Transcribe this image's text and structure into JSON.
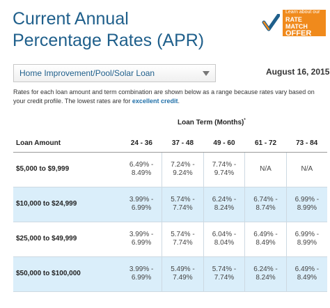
{
  "header": {
    "title_line1": "Current Annual",
    "title_line2": "Percentage Rates (APR)"
  },
  "badge": {
    "line1": "Learn about our",
    "line2": "RATE MATCH",
    "line3": "OFFER",
    "icon": "checkmark-icon",
    "bg_color": "#f08a1c"
  },
  "loan_select": {
    "value": "Home Improvement/Pool/Solar Loan",
    "icon": "triangle-down-icon"
  },
  "date": "August 16, 2015",
  "description": {
    "text": "Rates for each loan amount and term combination are shown below as a range because rates vary based on your credit profile. The lowest rates are for ",
    "link": "excellent credit",
    "end": "."
  },
  "table": {
    "term_header": "Loan Term (Months)",
    "term_marker": "*",
    "amount_header": "Loan Amount",
    "columns": [
      "24 - 36",
      "37 - 48",
      "49 - 60",
      "61 - 72",
      "73 - 84"
    ],
    "rows": [
      {
        "amount": "$5,000 to $9,999",
        "cells": [
          [
            "6.49% -",
            "8.49%"
          ],
          [
            "7.24% -",
            "9.24%"
          ],
          [
            "7.74% -",
            "9.74%"
          ],
          [
            "N/A",
            ""
          ],
          [
            "N/A",
            ""
          ]
        ]
      },
      {
        "amount": "$10,000 to $24,999",
        "cells": [
          [
            "3.99% -",
            "6.99%"
          ],
          [
            "5.74% -",
            "7.74%"
          ],
          [
            "6.24% -",
            "8.24%"
          ],
          [
            "6.74% -",
            "8.74%"
          ],
          [
            "6.99% -",
            "8.99%"
          ]
        ]
      },
      {
        "amount": "$25,000 to $49,999",
        "cells": [
          [
            "3.99% -",
            "6.99%"
          ],
          [
            "5.74% -",
            "7.74%"
          ],
          [
            "6.04% -",
            "8.04%"
          ],
          [
            "6.49% -",
            "8.49%"
          ],
          [
            "6.99% -",
            "8.99%"
          ]
        ]
      },
      {
        "amount": "$50,000 to $100,000",
        "cells": [
          [
            "3.99% -",
            "6.99%"
          ],
          [
            "5.49% -",
            "7.49%"
          ],
          [
            "5.74% -",
            "7.74%"
          ],
          [
            "6.24% -",
            "8.24%"
          ],
          [
            "6.49% -",
            "8.49%"
          ]
        ]
      }
    ]
  }
}
